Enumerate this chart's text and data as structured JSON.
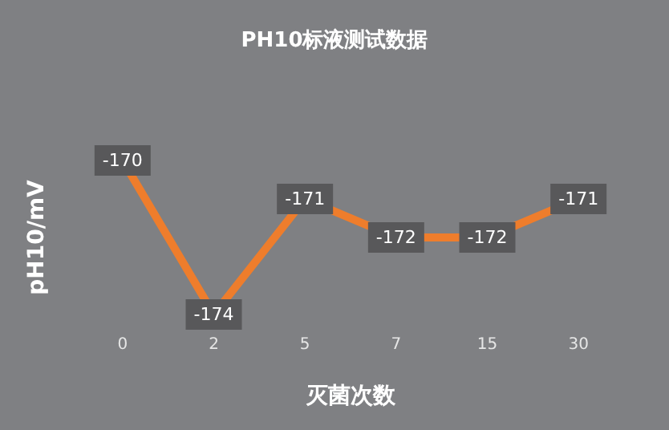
{
  "chart_data": {
    "type": "line",
    "title": "PH10标液测试数据",
    "xlabel": "灭菌次数",
    "ylabel": "pH10/mV",
    "categories": [
      "0",
      "2",
      "5",
      "7",
      "15",
      "30"
    ],
    "series": [
      {
        "color": "#ee7d2c",
        "values": [
          -170,
          -174,
          -171,
          -172,
          -172,
          -171
        ]
      }
    ],
    "data_labels": true,
    "grid": false,
    "marker": "square",
    "line_style": "solid"
  }
}
